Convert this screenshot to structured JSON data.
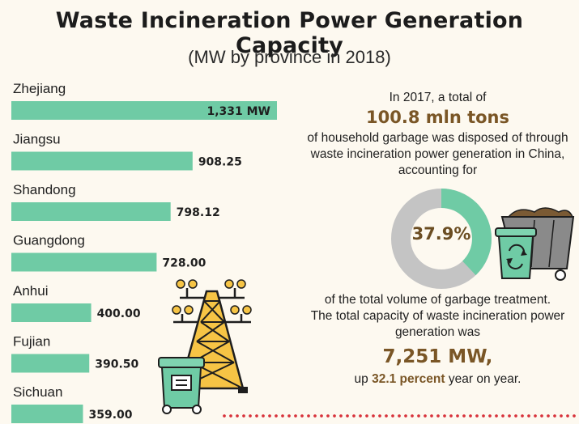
{
  "header": {
    "title": "Waste Incineration Power Generation Capacity",
    "subtitle": "(MW by province in 2018)"
  },
  "chart_data": {
    "type": "bar",
    "orientation": "horizontal",
    "categories": [
      "Zhejiang",
      "Jiangsu",
      "Shandong",
      "Guangdong",
      "Anhui",
      "Fujian",
      "Sichuan"
    ],
    "values": [
      1331,
      908.25,
      798.12,
      728.0,
      400.0,
      390.5,
      359.0
    ],
    "value_labels": [
      "1,331 MW",
      "908.25",
      "798.12",
      "728.00",
      "400.00",
      "390.50",
      "359.00"
    ],
    "title": "Waste Incineration Power Generation Capacity",
    "subtitle": "(MW by province in 2018)",
    "xlabel": "",
    "ylabel": "",
    "grid": false,
    "color": "#6fcba5"
  },
  "info": {
    "intro": "In 2017, a total of",
    "tons": "100.8 mln tons",
    "line1": "of household garbage was disposed of through",
    "line2": "waste incineration power generation in China,",
    "line3": "accounting for",
    "donut": {
      "percent_label": "37.9%",
      "value": 0.379,
      "filled_color": "#6fcba5",
      "rest_color": "#c4c4c4"
    },
    "after1": "of the total volume of garbage treatment.",
    "after2": "The total capacity of waste incineration power",
    "after3": "generation was",
    "capacity": "7,251 MW,",
    "growth_prefix": "up",
    "growth_value": "32.1 percent",
    "growth_suffix": "year on year."
  },
  "icons": {
    "tower": "power-tower-icon",
    "bin": "garbage-bin-icon",
    "cart": "garbage-cart-icon"
  }
}
